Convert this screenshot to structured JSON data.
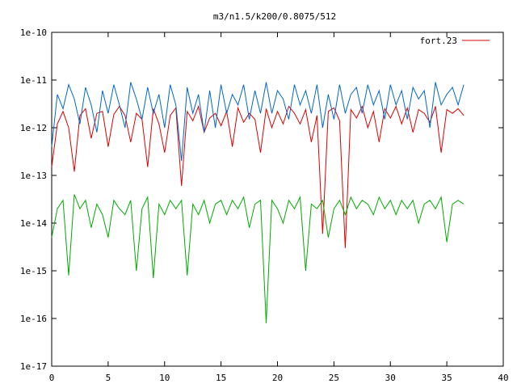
{
  "chart_data": {
    "type": "line",
    "title": "m3/n1.5/k200/0.8075/512",
    "xlabel": "",
    "ylabel": "",
    "xlim": [
      0,
      40
    ],
    "ylim": [
      1e-17,
      1e-10
    ],
    "yscale": "log",
    "grid": false,
    "legend_position": "top-right",
    "x_ticks": [
      "0",
      "5",
      "10",
      "15",
      "20",
      "25",
      "30",
      "35",
      "40"
    ],
    "y_ticks": [
      "1e-17",
      "1e-16",
      "1e-15",
      "1e-14",
      "1e-13",
      "1e-12",
      "1e-11",
      "1e-10"
    ],
    "series": [
      {
        "name": "fort.23",
        "color": "#dd0000",
        "x": [
          0,
          0.5,
          1,
          1.5,
          2,
          2.5,
          3,
          3.5,
          4,
          4.5,
          5,
          5.5,
          6,
          6.5,
          7,
          7.5,
          8,
          8.5,
          9,
          9.5,
          10,
          10.5,
          11,
          11.5,
          12,
          12.5,
          13,
          13.5,
          14,
          14.5,
          15,
          15.5,
          16,
          16.5,
          17,
          17.5,
          18,
          18.5,
          19,
          19.5,
          20,
          20.5,
          21,
          21.5,
          22,
          22.5,
          23,
          23.5,
          24,
          24.5,
          25,
          25.5,
          26,
          26.5,
          27,
          27.5,
          28,
          28.5,
          29,
          29.5,
          30,
          30.5,
          31,
          31.5,
          32,
          32.5,
          33,
          33.5,
          34,
          34.5,
          35,
          35.5,
          36,
          36.5
        ],
        "y": [
          1.5e-13,
          1.2e-12,
          2.2e-12,
          1e-12,
          1.2e-13,
          1.8e-12,
          2.5e-12,
          6e-13,
          2e-12,
          2.2e-12,
          4e-13,
          1.9e-12,
          2.8e-12,
          1.8e-12,
          5e-13,
          2e-12,
          1.5e-12,
          1.5e-13,
          2.5e-12,
          1.2e-12,
          3e-13,
          1.8e-12,
          2.6e-12,
          6e-14,
          2.2e-12,
          1.4e-12,
          2.8e-12,
          8e-13,
          1.6e-12,
          2e-12,
          1.1e-12,
          2.2e-12,
          4e-13,
          2.6e-12,
          1.3e-12,
          2e-12,
          1.5e-12,
          3e-13,
          2.5e-12,
          1e-12,
          2.2e-12,
          1.2e-12,
          2.8e-12,
          2e-12,
          1.2e-12,
          2.4e-12,
          5e-13,
          1.8e-12,
          6e-15,
          2.2e-12,
          2.6e-12,
          1.4e-12,
          3e-15,
          2.4e-12,
          1.6e-12,
          2.8e-12,
          1e-12,
          2.2e-12,
          5e-13,
          2.5e-12,
          1.6e-12,
          2.8e-12,
          1.2e-12,
          2.6e-12,
          8e-13,
          2.4e-12,
          2e-12,
          1.3e-12,
          2.8e-12,
          3e-13,
          2.4e-12,
          2e-12,
          2.5e-12,
          1.8e-12
        ]
      },
      {
        "color": "#0066cc",
        "x": [
          0,
          0.5,
          1,
          1.5,
          2,
          2.5,
          3,
          3.5,
          4,
          4.5,
          5,
          5.5,
          6,
          6.5,
          7,
          7.5,
          8,
          8.5,
          9,
          9.5,
          10,
          10.5,
          11,
          11.5,
          12,
          12.5,
          13,
          13.5,
          14,
          14.5,
          15,
          15.5,
          16,
          16.5,
          17,
          17.5,
          18,
          18.5,
          19,
          19.5,
          20,
          20.5,
          21,
          21.5,
          22,
          22.5,
          23,
          23.5,
          24,
          24.5,
          25,
          25.5,
          26,
          26.5,
          27,
          27.5,
          28,
          28.5,
          29,
          29.5,
          30,
          30.5,
          31,
          31.5,
          32,
          32.5,
          33,
          33.5,
          34,
          34.5,
          35,
          35.5,
          36,
          36.5
        ],
        "y": [
          4e-13,
          5e-12,
          2.5e-12,
          8e-12,
          4e-12,
          1.2e-12,
          7e-12,
          3e-12,
          8e-13,
          6e-12,
          2e-12,
          8e-12,
          3e-12,
          1e-12,
          9e-12,
          4e-12,
          1.5e-12,
          7e-12,
          2e-12,
          5e-12,
          1e-12,
          8e-12,
          3e-12,
          2e-13,
          7e-12,
          2e-12,
          5e-12,
          8e-13,
          6e-12,
          1e-12,
          8e-12,
          2e-12,
          5e-12,
          3e-12,
          8e-12,
          1.5e-12,
          6e-12,
          2e-12,
          9e-12,
          2e-12,
          6e-12,
          4e-12,
          1.5e-12,
          8e-12,
          3e-12,
          6e-12,
          2e-12,
          8e-12,
          1e-12,
          5e-12,
          1.5e-12,
          8e-12,
          2e-12,
          5e-12,
          7e-12,
          2e-12,
          8e-12,
          3e-12,
          6e-12,
          1.5e-12,
          8e-12,
          3e-12,
          6e-12,
          1.5e-12,
          7e-12,
          4e-12,
          6e-12,
          1e-12,
          9e-12,
          3e-12,
          5e-12,
          7e-12,
          3e-12,
          8e-12
        ]
      },
      {
        "color": "#00aa00",
        "x": [
          0,
          0.5,
          1,
          1.5,
          2,
          2.5,
          3,
          3.5,
          4,
          4.5,
          5,
          5.5,
          6,
          6.5,
          7,
          7.5,
          8,
          8.5,
          9,
          9.5,
          10,
          10.5,
          11,
          11.5,
          12,
          12.5,
          13,
          13.5,
          14,
          14.5,
          15,
          15.5,
          16,
          16.5,
          17,
          17.5,
          18,
          18.5,
          19,
          19.5,
          20,
          20.5,
          21,
          21.5,
          22,
          22.5,
          23,
          23.5,
          24,
          24.5,
          25,
          25.5,
          26,
          26.5,
          27,
          27.5,
          28,
          28.5,
          29,
          29.5,
          30,
          30.5,
          31,
          31.5,
          32,
          32.5,
          33,
          33.5,
          34,
          34.5,
          35,
          35.5,
          36,
          36.5
        ],
        "y": [
          5e-15,
          2e-14,
          3e-14,
          8e-16,
          4e-14,
          2e-14,
          3e-14,
          8e-15,
          2.5e-14,
          1.5e-14,
          5e-15,
          3e-14,
          2e-14,
          1.5e-14,
          3e-14,
          1e-15,
          2e-14,
          3.5e-14,
          7e-16,
          2.5e-14,
          1.5e-14,
          3e-14,
          2e-14,
          3e-14,
          8e-16,
          2.5e-14,
          1.5e-14,
          3e-14,
          1e-14,
          2.5e-14,
          3e-14,
          1.5e-14,
          3e-14,
          2e-14,
          3.5e-14,
          8e-15,
          2.5e-14,
          3e-14,
          8e-17,
          3e-14,
          2e-14,
          1e-14,
          3e-14,
          2e-14,
          3.5e-14,
          1e-15,
          2.5e-14,
          2e-14,
          3e-14,
          5e-15,
          2e-14,
          3e-14,
          1.5e-14,
          3.5e-14,
          2e-14,
          3e-14,
          2.5e-14,
          1.5e-14,
          3.5e-14,
          2e-14,
          3e-14,
          1.5e-14,
          3e-14,
          2e-14,
          3e-14,
          1e-14,
          2.5e-14,
          3e-14,
          2e-14,
          3.5e-14,
          4e-15,
          2.5e-14,
          3e-14,
          2.5e-14
        ]
      }
    ]
  }
}
